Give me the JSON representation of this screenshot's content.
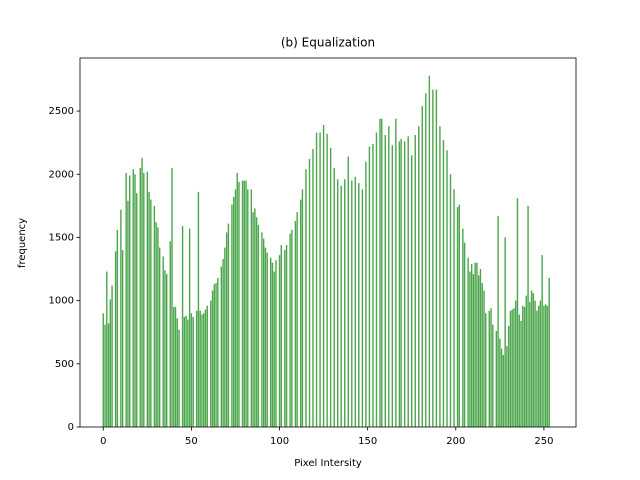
{
  "chart_data": {
    "type": "bar",
    "title": "(b) Equalization",
    "x_label": "Pixel Intersity",
    "y_label": "frequency",
    "color": "#4ca64c",
    "x": [
      0,
      1,
      2,
      3,
      4,
      5,
      6,
      7,
      8,
      9,
      10,
      11,
      12,
      13,
      14,
      15,
      16,
      17,
      18,
      19,
      20,
      21,
      22,
      23,
      24,
      25,
      26,
      27,
      28,
      29,
      30,
      31,
      32,
      33,
      34,
      35,
      36,
      37,
      38,
      39,
      40,
      41,
      42,
      43,
      44,
      45,
      46,
      47,
      48,
      49,
      50,
      51,
      52,
      53,
      54,
      55,
      56,
      57,
      58,
      59,
      60,
      61,
      62,
      63,
      64,
      65,
      66,
      67,
      68,
      69,
      70,
      71,
      72,
      73,
      74,
      75,
      76,
      77,
      78,
      79,
      80,
      81,
      82,
      83,
      84,
      85,
      86,
      87,
      88,
      89,
      90,
      91,
      92,
      93,
      94,
      95,
      96,
      97,
      98,
      99,
      100,
      101,
      102,
      103,
      104,
      105,
      106,
      107,
      108,
      109,
      110,
      111,
      112,
      113,
      114,
      115,
      116,
      117,
      118,
      119,
      120,
      121,
      122,
      123,
      124,
      125,
      126,
      127,
      128,
      129,
      130,
      131,
      132,
      133,
      134,
      135,
      136,
      137,
      138,
      139,
      140,
      141,
      142,
      143,
      144,
      145,
      146,
      147,
      148,
      149,
      150,
      151,
      152,
      153,
      154,
      155,
      156,
      157,
      158,
      159,
      160,
      161,
      162,
      163,
      164,
      165,
      166,
      167,
      168,
      169,
      170,
      171,
      172,
      173,
      174,
      175,
      176,
      177,
      178,
      179,
      180,
      181,
      182,
      183,
      184,
      185,
      186,
      187,
      188,
      189,
      190,
      191,
      192,
      193,
      194,
      195,
      196,
      197,
      198,
      199,
      200,
      201,
      202,
      203,
      204,
      205,
      206,
      207,
      208,
      209,
      210,
      211,
      212,
      213,
      214,
      215,
      216,
      217,
      218,
      219,
      220,
      221,
      222,
      223,
      224,
      225,
      226,
      227,
      228,
      229,
      230,
      231,
      232,
      233,
      234,
      235,
      236,
      237,
      238,
      239,
      240,
      241,
      242,
      243,
      244,
      245,
      246,
      247,
      248,
      249,
      250,
      251,
      252,
      253,
      254,
      255
    ],
    "values": [
      900,
      810,
      1230,
      820,
      1010,
      1120,
      0,
      1390,
      1560,
      0,
      1720,
      1400,
      0,
      2010,
      1790,
      1990,
      0,
      2040,
      2000,
      1850,
      0,
      2050,
      2130,
      2010,
      0,
      2020,
      1860,
      1800,
      0,
      1750,
      1620,
      1580,
      1420,
      0,
      1350,
      1240,
      1210,
      0,
      1470,
      2050,
      950,
      950,
      860,
      770,
      0,
      1590,
      870,
      880,
      850,
      1570,
      900,
      870,
      0,
      920,
      1860,
      920,
      890,
      900,
      930,
      960,
      0,
      1000,
      1080,
      1130,
      1140,
      1180,
      0,
      1270,
      1330,
      1420,
      1540,
      1610,
      0,
      1760,
      1820,
      1880,
      2010,
      1940,
      0,
      1950,
      1950,
      1950,
      1880,
      0,
      1880,
      1700,
      1730,
      1660,
      1600,
      0,
      1540,
      1490,
      1420,
      1380,
      0,
      1340,
      1300,
      1230,
      1320,
      0,
      1360,
      1440,
      0,
      1400,
      1440,
      0,
      1530,
      1560,
      0,
      1630,
      1700,
      0,
      1800,
      1880,
      0,
      2040,
      0,
      2120,
      0,
      2200,
      0,
      2330,
      0,
      2330,
      0,
      2390,
      0,
      2320,
      0,
      2210,
      0,
      2050,
      0,
      1960,
      0,
      1910,
      0,
      1960,
      0,
      2140,
      0,
      1950,
      0,
      1980,
      0,
      1930,
      0,
      1880,
      0,
      2100,
      0,
      2220,
      0,
      2240,
      0,
      2330,
      0,
      2440,
      2440,
      0,
      2310,
      0,
      2380,
      0,
      2230,
      0,
      2440,
      0,
      2260,
      2280,
      0,
      2260,
      0,
      2300,
      0,
      2150,
      0,
      2310,
      0,
      2380,
      0,
      2540,
      0,
      2640,
      0,
      2780,
      0,
      2670,
      0,
      2670,
      0,
      2380,
      0,
      2270,
      0,
      2190,
      0,
      2000,
      0,
      1880,
      0,
      1740,
      1760,
      0,
      1570,
      1460,
      0,
      1340,
      1230,
      1290,
      1210,
      1300,
      1300,
      1200,
      1250,
      1140,
      1080,
      900,
      0,
      920,
      940,
      810,
      0,
      760,
      1670,
      700,
      620,
      570,
      1500,
      640,
      800,
      920,
      930,
      940,
      1000,
      1810,
      890,
      840,
      960,
      950,
      1040,
      1750,
      990,
      1080,
      1060,
      1000,
      920,
      960,
      1000,
      1360,
      960,
      970,
      960,
      1180,
      0,
      0
    ],
    "xlim": [
      -13.2,
      268.2
    ],
    "xticks": [
      0,
      50,
      100,
      150,
      200,
      250
    ],
    "ylim": [
      0,
      2920
    ],
    "yticks": [
      0,
      500,
      1000,
      1500,
      2000,
      2500
    ]
  }
}
